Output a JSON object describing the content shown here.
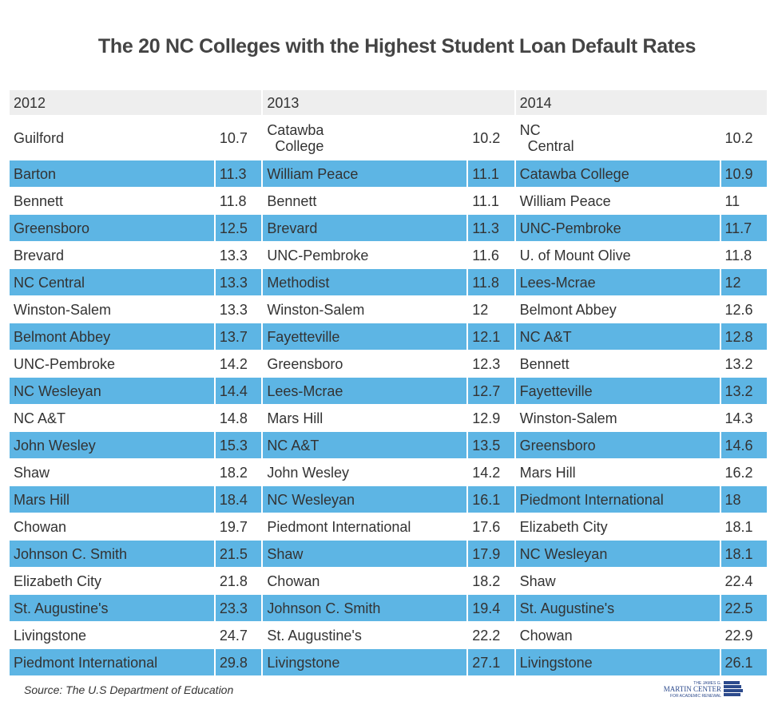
{
  "chart_data": {
    "type": "table",
    "title": "The 20 NC Colleges with the Highest Student Loan Default Rates",
    "columns": [
      "2012",
      "2013",
      "2014"
    ],
    "years": [
      {
        "year": "2012",
        "rows": [
          [
            "Guilford",
            "10.7"
          ],
          [
            "Barton",
            "11.3"
          ],
          [
            "Bennett",
            "11.8"
          ],
          [
            "Greensboro",
            "12.5"
          ],
          [
            "Brevard",
            "13.3"
          ],
          [
            "NC Central",
            "13.3"
          ],
          [
            "Winston-Salem",
            "13.3"
          ],
          [
            "Belmont Abbey",
            "13.7"
          ],
          [
            "UNC-Pembroke",
            "14.2"
          ],
          [
            "NC Wesleyan",
            "14.4"
          ],
          [
            "NC A&T",
            "14.8"
          ],
          [
            "John Wesley",
            "15.3"
          ],
          [
            "Shaw",
            "18.2"
          ],
          [
            "Mars Hill",
            "18.4"
          ],
          [
            "Chowan",
            "19.7"
          ],
          [
            "Johnson C. Smith",
            "21.5"
          ],
          [
            "Elizabeth City",
            "21.8"
          ],
          [
            "St. Augustine's",
            "23.3"
          ],
          [
            "Livingstone",
            "24.7"
          ],
          [
            "Piedmont International",
            "29.8"
          ]
        ]
      },
      {
        "year": "2013",
        "rows": [
          [
            "Catawba\nCollege",
            "10.2"
          ],
          [
            "William Peace",
            "11.1"
          ],
          [
            "Bennett",
            "11.1"
          ],
          [
            "Brevard",
            "11.3"
          ],
          [
            "UNC-Pembroke",
            "11.6"
          ],
          [
            "Methodist",
            "11.8"
          ],
          [
            "Winston-Salem",
            "12"
          ],
          [
            "Fayetteville",
            "12.1"
          ],
          [
            "Greensboro",
            "12.3"
          ],
          [
            "Lees-Mcrae",
            "12.7"
          ],
          [
            "Mars Hill",
            "12.9"
          ],
          [
            "NC A&T",
            "13.5"
          ],
          [
            "John Wesley",
            "14.2"
          ],
          [
            "NC Wesleyan",
            "16.1"
          ],
          [
            "Piedmont International",
            "17.6"
          ],
          [
            "Shaw",
            "17.9"
          ],
          [
            "Chowan",
            "18.2"
          ],
          [
            "Johnson C. Smith",
            "19.4"
          ],
          [
            "St. Augustine's",
            "22.2"
          ],
          [
            "Livingstone",
            "27.1"
          ]
        ]
      },
      {
        "year": "2014",
        "rows": [
          [
            "NC\nCentral",
            "10.2"
          ],
          [
            "Catawba College",
            "10.9"
          ],
          [
            "William Peace",
            "11"
          ],
          [
            "UNC-Pembroke",
            "11.7"
          ],
          [
            "U. of Mount Olive",
            "11.8"
          ],
          [
            "Lees-Mcrae",
            "12"
          ],
          [
            "Belmont Abbey",
            "12.6"
          ],
          [
            "NC A&T",
            "12.8"
          ],
          [
            "Bennett",
            "13.2"
          ],
          [
            "Fayetteville",
            "13.2"
          ],
          [
            "Winston-Salem",
            "14.3"
          ],
          [
            "Greensboro",
            "14.6"
          ],
          [
            "Mars Hill",
            "16.2"
          ],
          [
            "Piedmont International",
            "18"
          ],
          [
            "Elizabeth City",
            "18.1"
          ],
          [
            "NC Wesleyan",
            "18.1"
          ],
          [
            "Shaw",
            "22.4"
          ],
          [
            "St. Augustine's",
            "22.5"
          ],
          [
            "Chowan",
            "22.9"
          ],
          [
            "Livingstone",
            "26.1"
          ]
        ]
      }
    ]
  },
  "source": "Source: The U.S Department of Education",
  "logo": {
    "line1": "THE JAMES G.",
    "line2": "MARTIN CENTER",
    "line3": "FOR ACADEMIC RENEWAL"
  },
  "colors": {
    "stripe": "#5db5e4",
    "header": "#eeeeee",
    "logo": "#2c4a8c"
  }
}
